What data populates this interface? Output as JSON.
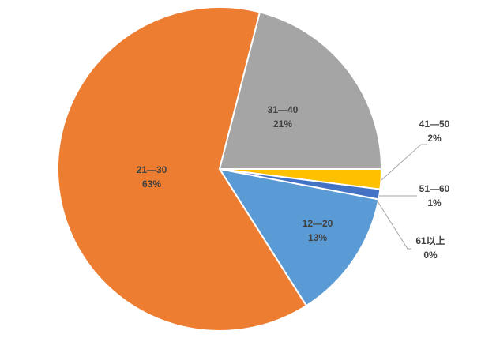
{
  "chart_data": {
    "type": "pie",
    "title": "",
    "categories": [
      "12—20",
      "21—30",
      "31—40",
      "41—50",
      "51—60",
      "61以上"
    ],
    "values": [
      13,
      63,
      21,
      2,
      1,
      0
    ],
    "percent_labels": [
      "13%",
      "63%",
      "21%",
      "2%",
      "1%",
      "0%"
    ],
    "colors": [
      "#5B9BD5",
      "#ED7D31",
      "#A5A5A5",
      "#FFC000",
      "#4472C4",
      "#70AD47"
    ],
    "start_angle_deg": 100.8,
    "direction": "clockwise",
    "legend": "none"
  }
}
